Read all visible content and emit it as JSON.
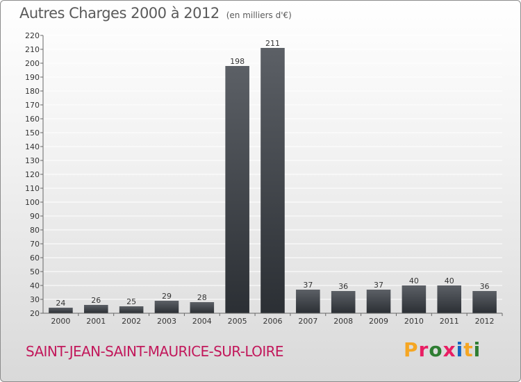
{
  "header": {
    "title": "Autres Charges 2000 à 2012",
    "subtitle": "(en milliers d'€)"
  },
  "footer": {
    "town": "SAINT-JEAN-SAINT-MAURICE-SUR-LOIRE",
    "logo": "Proxiti",
    "logo_colors": [
      "#f5a623",
      "#e91e63",
      "#2e7d32",
      "#e91e63",
      "#1565c0",
      "#f5a623",
      "#2e7d32"
    ]
  },
  "colors": {
    "bar_top": "#5c6066",
    "bar_bottom": "#2b2f34",
    "grid": "#ffffff",
    "axis": "#666666"
  },
  "chart_data": {
    "type": "bar",
    "categories": [
      "2000",
      "2001",
      "2002",
      "2003",
      "2004",
      "2005",
      "2006",
      "2007",
      "2008",
      "2009",
      "2010",
      "2011",
      "2012"
    ],
    "values": [
      24,
      26,
      25,
      29,
      28,
      198,
      211,
      37,
      36,
      37,
      40,
      40,
      36
    ],
    "ylim": [
      20,
      220
    ],
    "yticks": [
      20,
      30,
      40,
      50,
      60,
      70,
      80,
      90,
      100,
      110,
      120,
      130,
      140,
      150,
      160,
      170,
      180,
      190,
      200,
      210,
      220
    ],
    "grid": true,
    "data_labels": true
  }
}
